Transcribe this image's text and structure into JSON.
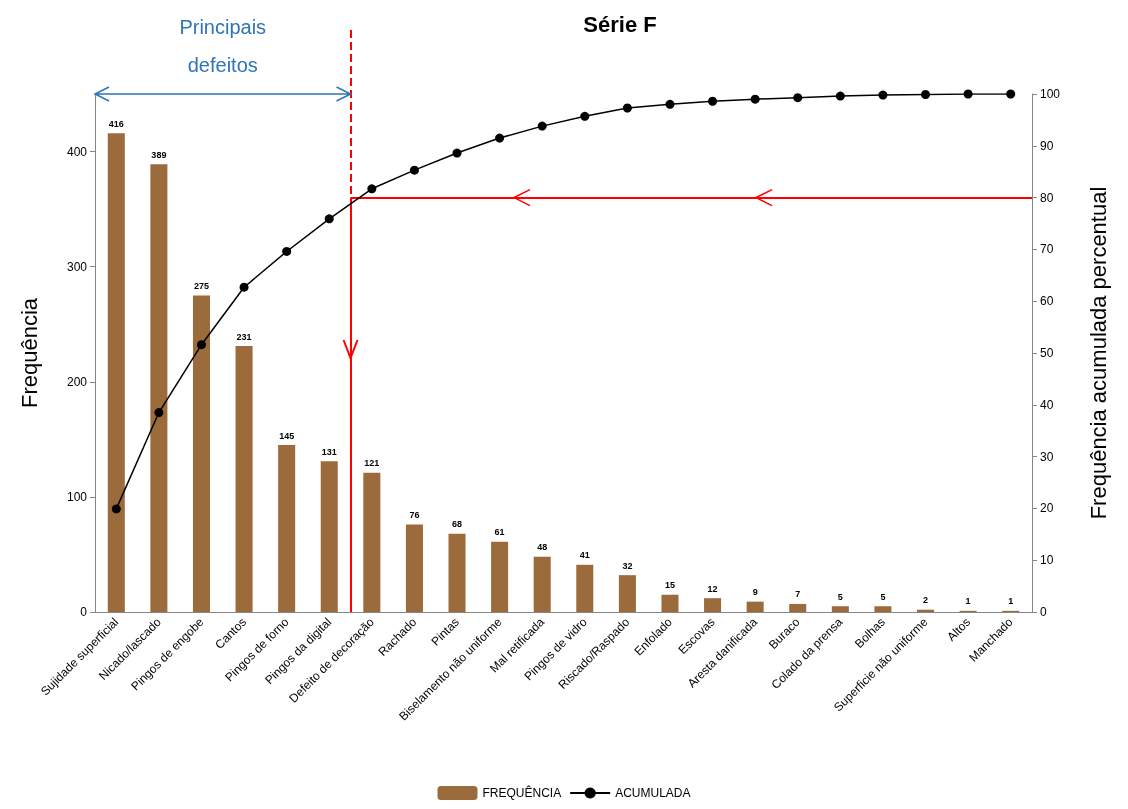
{
  "chart_data": {
    "type": "bar",
    "title": "Série F",
    "ylabel": "Frequência",
    "y2label": "Frequência acumulada percentual",
    "categories": [
      "Sujidade superficial",
      "Nicado/lascado",
      "Pingos de engobe",
      "Cantos",
      "Pingos de forno",
      "Pingos da digital",
      "Defeito de decoração",
      "Rachado",
      "Pintas",
      "Biselamento não uniforme",
      "Mal retificada",
      "Pingos de vidro",
      "Riscado/Raspado",
      "Enfolado",
      "Escovas",
      "Aresta danificada",
      "Buraco",
      "Colado da prensa",
      "Bolhas",
      "Superficie não uniforme",
      "Altos",
      "Manchado"
    ],
    "series": [
      {
        "name": "FREQUÊNCIA",
        "color": "#9c6b3c",
        "values": [
          416,
          389,
          275,
          231,
          145,
          131,
          121,
          76,
          68,
          61,
          48,
          41,
          32,
          15,
          12,
          9,
          7,
          5,
          5,
          2,
          1,
          1
        ],
        "value_labels": [
          "416",
          "389",
          "275",
          "231",
          "145",
          "131",
          "121",
          "76",
          "68",
          "61",
          "48",
          "41",
          "32",
          "15",
          "12",
          "9",
          "7",
          "5",
          "5",
          "2",
          "1",
          "1"
        ]
      },
      {
        "name": "ACUMULADA",
        "type": "line",
        "axis": "y2",
        "color": "#000000",
        "marker": "circle",
        "values": [
          19.9,
          38.5,
          51.6,
          62.7,
          69.6,
          75.9,
          81.7,
          85.3,
          88.6,
          91.5,
          93.8,
          95.7,
          97.3,
          98.0,
          98.6,
          99.0,
          99.3,
          99.6,
          99.8,
          99.9,
          100,
          100
        ]
      }
    ],
    "ylim": [
      0,
      450
    ],
    "yticks": [
      0,
      100,
      200,
      300,
      400
    ],
    "y2lim": [
      0,
      100
    ],
    "y2ticks": [
      0,
      10,
      20,
      30,
      40,
      50,
      60,
      70,
      80,
      90,
      100
    ],
    "ref_lines": [
      {
        "axis": "y2",
        "value": 80,
        "color": "#ff0000",
        "label": null
      },
      {
        "axis": "x",
        "value": "Defeito de decoração",
        "color": "#ff0000",
        "label": null
      }
    ],
    "annotations": [
      "Principais defeitos"
    ],
    "grid": false,
    "legend": "bottom"
  }
}
